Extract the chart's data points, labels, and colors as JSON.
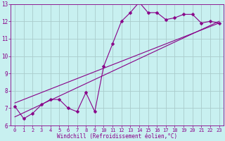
{
  "xlabel": "Windchill (Refroidissement éolien,°C)",
  "bg_color": "#c8f0f0",
  "line_color": "#880088",
  "grid_color": "#aacccc",
  "xlim": [
    -0.5,
    23.5
  ],
  "ylim": [
    6,
    13
  ],
  "xticks": [
    0,
    1,
    2,
    3,
    4,
    5,
    6,
    7,
    8,
    9,
    10,
    11,
    12,
    13,
    14,
    15,
    16,
    17,
    18,
    19,
    20,
    21,
    22,
    23
  ],
  "yticks": [
    6,
    7,
    8,
    9,
    10,
    11,
    12,
    13
  ],
  "series1_x": [
    0,
    1,
    2,
    3,
    4,
    5,
    6,
    7,
    8,
    9,
    10,
    11,
    12,
    13,
    14,
    15,
    16,
    17,
    18,
    19,
    20,
    21,
    22,
    23
  ],
  "series1_y": [
    7.1,
    6.4,
    6.7,
    7.2,
    7.5,
    7.5,
    7.0,
    6.8,
    7.9,
    6.8,
    9.4,
    10.7,
    12.0,
    12.5,
    13.1,
    12.5,
    12.5,
    12.1,
    12.2,
    12.4,
    12.4,
    11.9,
    12.0,
    11.9
  ],
  "line1_x": [
    0,
    23
  ],
  "line1_y": [
    6.5,
    12.0
  ],
  "line2_x": [
    0,
    23
  ],
  "line2_y": [
    7.3,
    11.9
  ],
  "line_width": 0.8,
  "marker": "D",
  "marker_size": 2.5,
  "tick_fontsize": 5.0,
  "xlabel_fontsize": 5.5
}
